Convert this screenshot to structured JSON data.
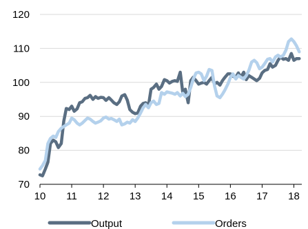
{
  "chart_data": {
    "type": "line",
    "title": "",
    "xlabel": "",
    "ylabel": "",
    "xlim": [
      10,
      18.25
    ],
    "ylim": [
      70,
      120
    ],
    "x_ticks": [
      10,
      11,
      12,
      13,
      14,
      15,
      16,
      17,
      18
    ],
    "y_ticks": [
      70,
      80,
      90,
      100,
      110,
      120
    ],
    "grid": "horizontal",
    "legend_position": "bottom",
    "series": [
      {
        "name": "Output",
        "color": "#5a6e82",
        "values": [
          [
            10.0,
            72.8
          ],
          [
            10.08,
            72.5
          ],
          [
            10.17,
            74.5
          ],
          [
            10.25,
            76.5
          ],
          [
            10.33,
            82.0
          ],
          [
            10.42,
            83.0
          ],
          [
            10.5,
            82.5
          ],
          [
            10.58,
            80.8
          ],
          [
            10.67,
            82.0
          ],
          [
            10.75,
            88.5
          ],
          [
            10.83,
            92.3
          ],
          [
            10.92,
            92.0
          ],
          [
            11.0,
            93.0
          ],
          [
            11.08,
            91.5
          ],
          [
            11.17,
            92.2
          ],
          [
            11.25,
            94.0
          ],
          [
            11.33,
            94.3
          ],
          [
            11.42,
            95.3
          ],
          [
            11.5,
            95.5
          ],
          [
            11.58,
            96.2
          ],
          [
            11.67,
            95.0
          ],
          [
            11.75,
            95.8
          ],
          [
            11.83,
            95.3
          ],
          [
            11.92,
            95.6
          ],
          [
            12.0,
            95.5
          ],
          [
            12.08,
            94.7
          ],
          [
            12.17,
            95.5
          ],
          [
            12.25,
            94.8
          ],
          [
            12.33,
            94.0
          ],
          [
            12.42,
            93.5
          ],
          [
            12.5,
            94.3
          ],
          [
            12.58,
            96.0
          ],
          [
            12.67,
            96.4
          ],
          [
            12.75,
            94.8
          ],
          [
            12.83,
            92.0
          ],
          [
            12.92,
            91.2
          ],
          [
            13.0,
            90.8
          ],
          [
            13.08,
            91.0
          ],
          [
            13.17,
            93.0
          ],
          [
            13.25,
            93.8
          ],
          [
            13.33,
            94.0
          ],
          [
            13.42,
            93.2
          ],
          [
            13.5,
            98.0
          ],
          [
            13.58,
            98.5
          ],
          [
            13.67,
            99.5
          ],
          [
            13.75,
            98.0
          ],
          [
            13.83,
            98.8
          ],
          [
            13.92,
            100.8
          ],
          [
            14.0,
            100.5
          ],
          [
            14.08,
            99.8
          ],
          [
            14.17,
            100.3
          ],
          [
            14.25,
            100.5
          ],
          [
            14.33,
            100.3
          ],
          [
            14.42,
            103.0
          ],
          [
            14.5,
            97.0
          ],
          [
            14.58,
            98.0
          ],
          [
            14.67,
            94.0
          ],
          [
            14.75,
            100.5
          ],
          [
            14.83,
            101.5
          ],
          [
            14.92,
            100.5
          ],
          [
            15.0,
            99.5
          ],
          [
            15.08,
            99.8
          ],
          [
            15.17,
            100.0
          ],
          [
            15.25,
            99.5
          ],
          [
            15.33,
            100.5
          ],
          [
            15.42,
            101.5
          ],
          [
            15.5,
            99.5
          ],
          [
            15.58,
            100.0
          ],
          [
            15.67,
            99.2
          ],
          [
            15.75,
            100.5
          ],
          [
            15.83,
            101.5
          ],
          [
            15.92,
            102.5
          ],
          [
            16.0,
            102.5
          ],
          [
            16.08,
            101.8
          ],
          [
            16.17,
            101.5
          ],
          [
            16.25,
            102.8
          ],
          [
            16.33,
            101.5
          ],
          [
            16.42,
            103.0
          ],
          [
            16.5,
            100.8
          ],
          [
            16.58,
            102.0
          ],
          [
            16.67,
            101.5
          ],
          [
            16.75,
            101.0
          ],
          [
            16.83,
            100.5
          ],
          [
            16.92,
            101.2
          ],
          [
            17.0,
            102.8
          ],
          [
            17.08,
            103.5
          ],
          [
            17.17,
            103.8
          ],
          [
            17.25,
            105.5
          ],
          [
            17.33,
            104.5
          ],
          [
            17.42,
            105.0
          ],
          [
            17.5,
            106.5
          ],
          [
            17.58,
            107.5
          ],
          [
            17.67,
            106.8
          ],
          [
            17.75,
            107.0
          ],
          [
            17.83,
            106.5
          ],
          [
            17.92,
            108.5
          ],
          [
            18.0,
            106.5
          ],
          [
            18.08,
            107.0
          ],
          [
            18.17,
            107.0
          ]
        ]
      },
      {
        "name": "Orders",
        "color": "#b4d1ec",
        "values": [
          [
            10.0,
            74.5
          ],
          [
            10.08,
            75.5
          ],
          [
            10.17,
            77.0
          ],
          [
            10.25,
            82.0
          ],
          [
            10.33,
            83.5
          ],
          [
            10.42,
            84.2
          ],
          [
            10.5,
            83.8
          ],
          [
            10.58,
            85.5
          ],
          [
            10.67,
            86.5
          ],
          [
            10.75,
            87.0
          ],
          [
            10.83,
            87.5
          ],
          [
            10.92,
            88.0
          ],
          [
            11.0,
            89.5
          ],
          [
            11.08,
            89.0
          ],
          [
            11.17,
            88.0
          ],
          [
            11.25,
            87.5
          ],
          [
            11.33,
            88.0
          ],
          [
            11.42,
            88.8
          ],
          [
            11.5,
            89.5
          ],
          [
            11.58,
            89.2
          ],
          [
            11.67,
            88.5
          ],
          [
            11.75,
            88.0
          ],
          [
            11.83,
            88.3
          ],
          [
            11.92,
            88.7
          ],
          [
            12.0,
            89.5
          ],
          [
            12.08,
            89.8
          ],
          [
            12.17,
            89.2
          ],
          [
            12.25,
            89.4
          ],
          [
            12.33,
            89.0
          ],
          [
            12.42,
            88.5
          ],
          [
            12.5,
            89.2
          ],
          [
            12.58,
            87.5
          ],
          [
            12.67,
            87.8
          ],
          [
            12.75,
            88.3
          ],
          [
            12.83,
            88.0
          ],
          [
            12.92,
            89.0
          ],
          [
            13.0,
            88.5
          ],
          [
            13.08,
            89.5
          ],
          [
            13.17,
            91.0
          ],
          [
            13.25,
            92.5
          ],
          [
            13.33,
            93.5
          ],
          [
            13.42,
            92.5
          ],
          [
            13.5,
            94.0
          ],
          [
            13.58,
            94.5
          ],
          [
            13.67,
            93.5
          ],
          [
            13.75,
            93.8
          ],
          [
            13.83,
            97.0
          ],
          [
            13.92,
            96.5
          ],
          [
            14.0,
            97.2
          ],
          [
            14.08,
            97.0
          ],
          [
            14.17,
            96.8
          ],
          [
            14.25,
            96.5
          ],
          [
            14.33,
            97.0
          ],
          [
            14.42,
            96.0
          ],
          [
            14.5,
            96.8
          ],
          [
            14.58,
            95.8
          ],
          [
            14.67,
            96.5
          ],
          [
            14.75,
            98.5
          ],
          [
            14.83,
            101.0
          ],
          [
            14.92,
            102.8
          ],
          [
            15.0,
            103.0
          ],
          [
            15.08,
            102.5
          ],
          [
            15.17,
            100.5
          ],
          [
            15.25,
            101.8
          ],
          [
            15.33,
            103.8
          ],
          [
            15.42,
            103.5
          ],
          [
            15.5,
            99.0
          ],
          [
            15.58,
            96.0
          ],
          [
            15.67,
            95.5
          ],
          [
            15.75,
            96.5
          ],
          [
            15.83,
            97.8
          ],
          [
            15.92,
            99.5
          ],
          [
            16.0,
            101.5
          ],
          [
            16.08,
            102.5
          ],
          [
            16.17,
            101.0
          ],
          [
            16.25,
            102.0
          ],
          [
            16.33,
            101.5
          ],
          [
            16.42,
            101.0
          ],
          [
            16.5,
            102.0
          ],
          [
            16.58,
            103.5
          ],
          [
            16.67,
            106.0
          ],
          [
            16.75,
            106.5
          ],
          [
            16.83,
            105.8
          ],
          [
            16.92,
            104.0
          ],
          [
            17.0,
            104.5
          ],
          [
            17.08,
            105.5
          ],
          [
            17.17,
            106.8
          ],
          [
            17.25,
            107.0
          ],
          [
            17.33,
            106.0
          ],
          [
            17.42,
            107.5
          ],
          [
            17.5,
            108.0
          ],
          [
            17.58,
            107.5
          ],
          [
            17.67,
            108.0
          ],
          [
            17.75,
            109.5
          ],
          [
            17.83,
            112.0
          ],
          [
            17.92,
            112.8
          ],
          [
            18.0,
            112.0
          ],
          [
            18.08,
            110.8
          ],
          [
            18.17,
            109.0
          ]
        ]
      }
    ]
  }
}
